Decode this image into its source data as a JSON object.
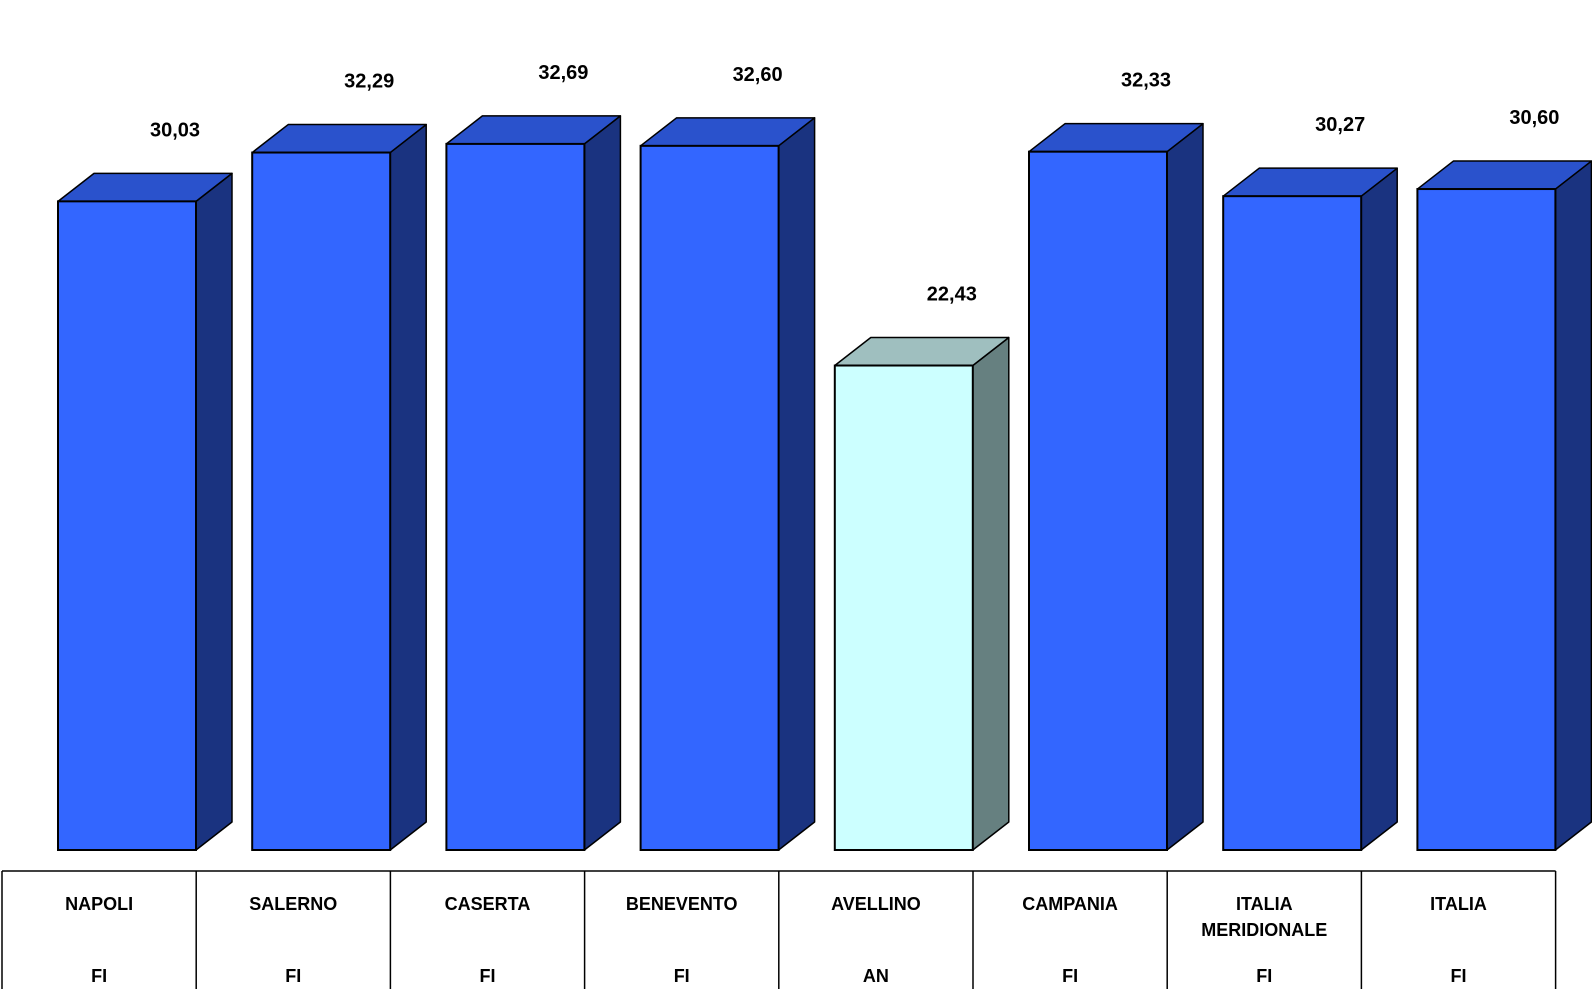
{
  "chart_data": {
    "type": "bar",
    "categories": [
      "NAPOLI",
      "SALERNO",
      "CASERTA",
      "BENEVENTO",
      "AVELLINO",
      "CAMPANIA",
      "ITALIA MERIDIONALE",
      "ITALIA"
    ],
    "category_lines": [
      [
        "NAPOLI"
      ],
      [
        "SALERNO"
      ],
      [
        "CASERTA"
      ],
      [
        "BENEVENTO"
      ],
      [
        "AVELLINO"
      ],
      [
        "CAMPANIA"
      ],
      [
        "ITALIA",
        "MERIDIONALE"
      ],
      [
        "ITALIA"
      ]
    ],
    "codes": [
      "FI",
      "FI",
      "FI",
      "FI",
      "AN",
      "FI",
      "FI",
      "FI"
    ],
    "values": [
      30.03,
      32.29,
      32.69,
      32.6,
      22.43,
      32.33,
      30.27,
      30.6
    ],
    "value_labels": [
      "30,03",
      "32,29",
      "32,69",
      "32,60",
      "22,43",
      "32,33",
      "30,27",
      "30,60"
    ],
    "highlight_index": 4,
    "ylim": [
      0,
      35
    ],
    "grid": false,
    "legend": "none",
    "colors": {
      "front": "#3366ff",
      "top": "#2a52cc",
      "side": "#1a3380",
      "highlight_front": "#ccffff",
      "highlight_top": "#9fbfbf",
      "highlight_side": "#668080",
      "outline": "#000000"
    }
  }
}
